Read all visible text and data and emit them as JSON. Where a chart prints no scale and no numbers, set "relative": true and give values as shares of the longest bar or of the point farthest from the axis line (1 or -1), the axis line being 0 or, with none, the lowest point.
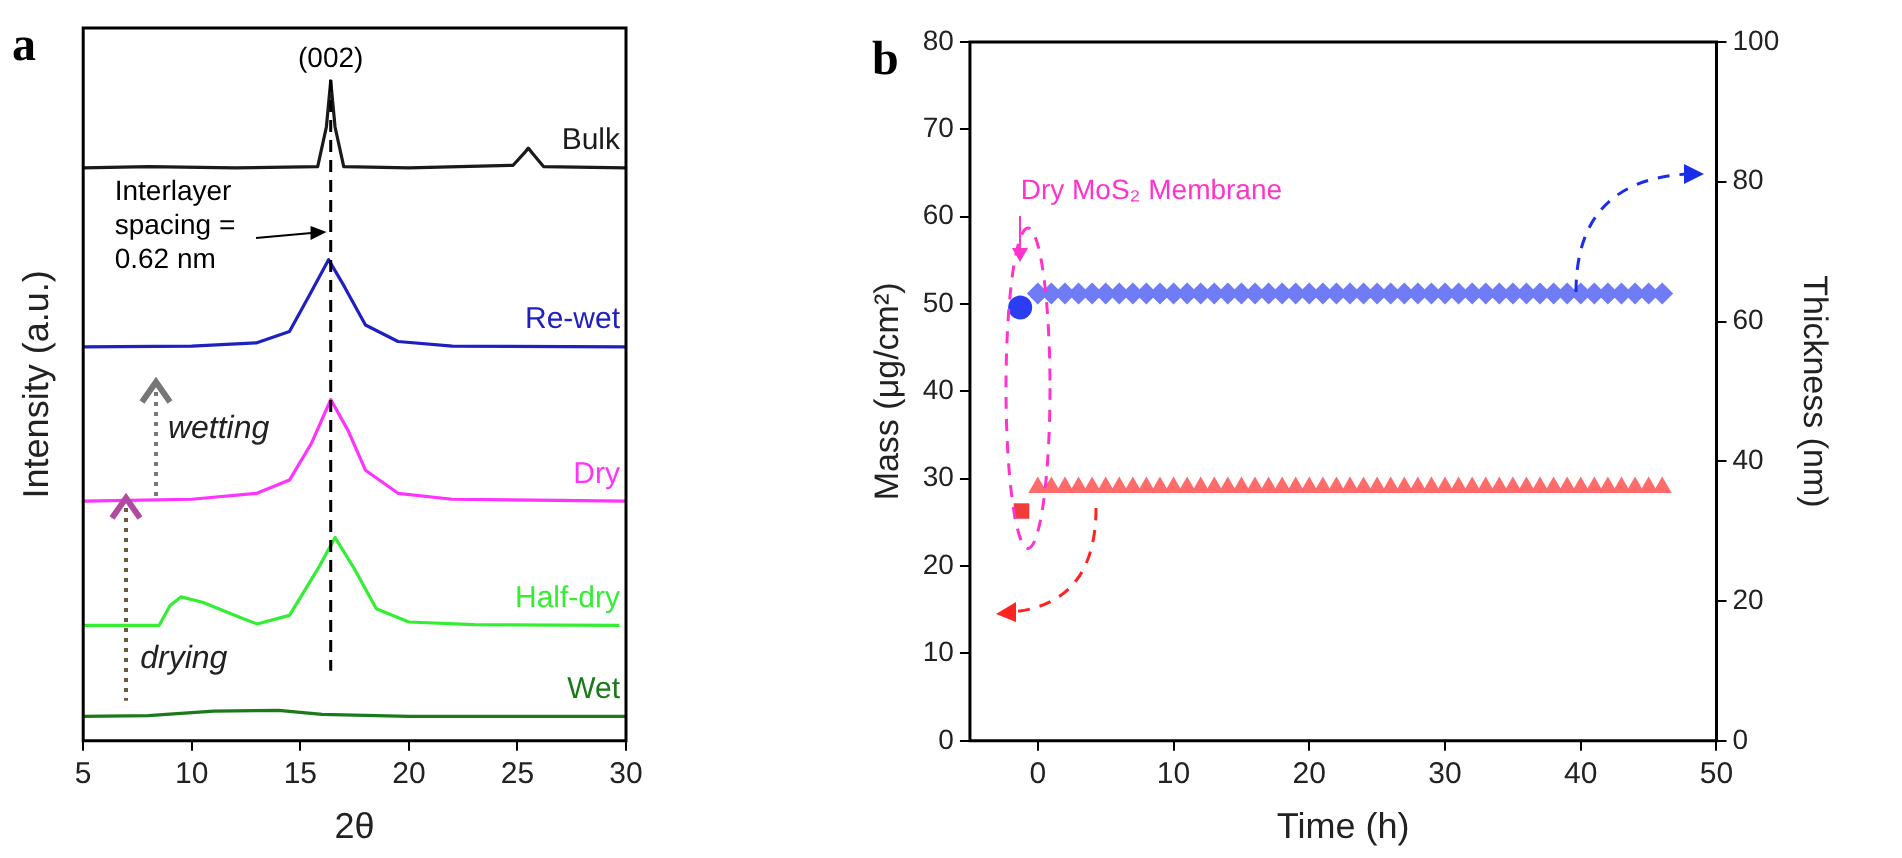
{
  "chart_data": [
    {
      "type": "line",
      "title": "a",
      "xlabel": "2θ",
      "ylabel": "Intensity (a.u.)",
      "relative": true,
      "xlim": [
        5,
        30
      ],
      "xticks": [
        5,
        10,
        15,
        20,
        25,
        30
      ],
      "tick_labels": "x",
      "grid": false,
      "legend": false,
      "marker": "none",
      "ref_lines": [
        {
          "axis": "x",
          "value": 16.4,
          "color": "#000000",
          "line_style": "dashed"
        }
      ],
      "annotations": [
        {
          "text": "(002)",
          "x": 16.4,
          "y": 1.0
        },
        "Interlayer spacing = 0.62 nm",
        "wetting",
        "drying"
      ],
      "series": [
        {
          "name": "Bulk",
          "color": "#1a1a1a",
          "x": [
            5,
            8,
            12,
            15.8,
            16.2,
            16.4,
            16.6,
            17,
            20,
            24.8,
            25.3,
            25.5,
            25.7,
            26.2,
            30
          ],
          "values": [
            0.868,
            0.87,
            0.868,
            0.87,
            0.93,
            1.0,
            0.93,
            0.87,
            0.868,
            0.872,
            0.89,
            0.898,
            0.89,
            0.87,
            0.868
          ]
        },
        {
          "name": "Re-wet",
          "color": "#2020c0",
          "x": [
            5,
            10,
            13,
            14.5,
            15.5,
            16.3,
            17,
            18,
            19.5,
            22,
            30
          ],
          "values": [
            0.597,
            0.598,
            0.603,
            0.62,
            0.68,
            0.729,
            0.69,
            0.63,
            0.605,
            0.598,
            0.597
          ]
        },
        {
          "name": "Dry",
          "color": "#ff33ff",
          "x": [
            5,
            10,
            13,
            14.5,
            15.5,
            16.4,
            17.2,
            18,
            19.5,
            22,
            30
          ],
          "values": [
            0.363,
            0.366,
            0.375,
            0.395,
            0.45,
            0.517,
            0.47,
            0.41,
            0.375,
            0.366,
            0.363
          ]
        },
        {
          "name": "Half-dry",
          "color": "#33ee33",
          "x": [
            5,
            8.5,
            9,
            9.5,
            10.5,
            12,
            13,
            14.5,
            15.8,
            16.6,
            17.5,
            18.5,
            20,
            23,
            29.7
          ],
          "values": [
            0.175,
            0.175,
            0.205,
            0.218,
            0.21,
            0.19,
            0.177,
            0.19,
            0.26,
            0.308,
            0.26,
            0.2,
            0.18,
            0.176,
            0.175
          ]
        },
        {
          "name": "Wet",
          "color": "#1a7a1a",
          "x": [
            5,
            8,
            11,
            14,
            16,
            20,
            30
          ],
          "values": [
            0.037,
            0.038,
            0.045,
            0.046,
            0.04,
            0.037,
            0.037
          ]
        }
      ]
    },
    {
      "type": "scatter",
      "title": "b",
      "xlabel": "Time (h)",
      "ylabel": "Mass (μg/cm²)",
      "y2label": "Thickness (nm)",
      "xlim": [
        -5,
        50
      ],
      "xticks": [
        0,
        10,
        20,
        30,
        40,
        50
      ],
      "ylim": [
        0,
        80
      ],
      "yticks": [
        0,
        10,
        20,
        30,
        40,
        50,
        60,
        70,
        80
      ],
      "y2lim": [
        0,
        100
      ],
      "y2ticks": [
        0,
        20,
        40,
        60,
        80,
        100
      ],
      "grid": false,
      "legend": false,
      "annotations": [
        "Dry MoS₂ Membrane"
      ],
      "series": [
        {
          "color": "#6f7cf5",
          "marker": "diamond",
          "axis": "y2",
          "x": [
            0,
            1,
            2,
            3,
            4,
            5,
            6,
            7,
            8,
            9,
            10,
            11,
            12,
            13,
            14,
            15,
            16,
            17,
            18,
            19,
            20,
            21,
            22,
            23,
            24,
            25,
            26,
            27,
            28,
            29,
            30,
            31,
            32,
            33,
            34,
            35,
            36,
            37,
            38,
            39,
            40,
            41,
            42,
            43,
            44,
            45,
            46
          ],
          "values": [
            64,
            64,
            64,
            64,
            64,
            64,
            64,
            64,
            64,
            64,
            64,
            64,
            64,
            64,
            64,
            64,
            64,
            64,
            64,
            64,
            64,
            64,
            64,
            64,
            64,
            64,
            64,
            64,
            64,
            64,
            64,
            64,
            64,
            64,
            64,
            64,
            64,
            64,
            64,
            64,
            64,
            64,
            64,
            64,
            64,
            64,
            64
          ]
        },
        {
          "color": "#2b3df0",
          "marker": "circle",
          "axis": "y2",
          "x": [
            -1.3
          ],
          "values": [
            62
          ]
        },
        {
          "color": "#ff6a6a",
          "marker": "triangle",
          "axis": "y",
          "x": [
            0,
            1,
            2,
            3,
            4,
            5,
            6,
            7,
            8,
            9,
            10,
            11,
            12,
            13,
            14,
            15,
            16,
            17,
            18,
            19,
            20,
            21,
            22,
            23,
            24,
            25,
            26,
            27,
            28,
            29,
            30,
            31,
            32,
            33,
            34,
            35,
            36,
            37,
            38,
            39,
            40,
            41,
            42,
            43,
            44,
            45,
            46
          ],
          "values": [
            29,
            29,
            29,
            29,
            29,
            29,
            29,
            29,
            29,
            29,
            29,
            29,
            29,
            29,
            29,
            29,
            29,
            29,
            29,
            29,
            29,
            29,
            29,
            29,
            29,
            29,
            29,
            29,
            29,
            29,
            29,
            29,
            29,
            29,
            29,
            29,
            29,
            29,
            29,
            29,
            29,
            29,
            29,
            29,
            29,
            29,
            29
          ]
        },
        {
          "color": "#f23c3c",
          "marker": "square",
          "axis": "y",
          "x": [
            -1.2
          ],
          "values": [
            26.3
          ]
        }
      ]
    }
  ]
}
